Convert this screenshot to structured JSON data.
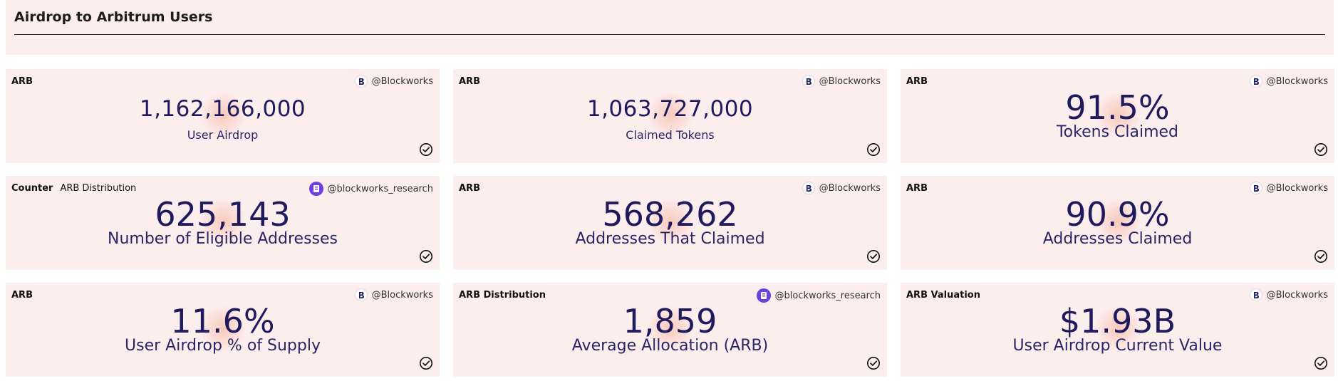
{
  "header": {
    "title": "Airdrop to Arbitrum Users"
  },
  "cards": [
    {
      "tag": "",
      "label": "ARB",
      "credit": "@Blockworks",
      "credit_icon": "blockworks-icon",
      "value": "1,162,166,000",
      "caption": "User Airdrop",
      "size": "sm"
    },
    {
      "tag": "",
      "label": "ARB",
      "credit": "@Blockworks",
      "credit_icon": "blockworks-icon",
      "value": "1,063,727,000",
      "caption": "Claimed Tokens",
      "size": "sm"
    },
    {
      "tag": "",
      "label": "ARB",
      "credit": "@Blockworks",
      "credit_icon": "blockworks-icon",
      "value": "91.5%",
      "caption": "Tokens Claimed",
      "size": "lg"
    },
    {
      "tag": "Counter",
      "label": "ARB Distribution",
      "credit": "@blockworks_research",
      "credit_icon": "blockworks-research-icon",
      "value": "625,143",
      "caption": "Number of Eligible Addresses",
      "size": "lg"
    },
    {
      "tag": "",
      "label": "ARB",
      "credit": "@Blockworks",
      "credit_icon": "blockworks-icon",
      "value": "568,262",
      "caption": "Addresses That Claimed",
      "size": "lg"
    },
    {
      "tag": "",
      "label": "ARB",
      "credit": "@Blockworks",
      "credit_icon": "blockworks-icon",
      "value": "90.9%",
      "caption": "Addresses Claimed",
      "size": "lg"
    },
    {
      "tag": "",
      "label": "ARB",
      "credit": "@Blockworks",
      "credit_icon": "blockworks-icon",
      "value": "11.6%",
      "caption": "User Airdrop % of Supply",
      "size": "lg"
    },
    {
      "tag": "",
      "label": "ARB Distribution",
      "credit": "@blockworks_research",
      "credit_icon": "blockworks-research-icon",
      "value": "1,859",
      "caption": "Average Allocation (ARB)",
      "size": "lg"
    },
    {
      "tag": "",
      "label": "ARB Valuation",
      "credit": "@Blockworks",
      "credit_icon": "blockworks-icon",
      "value": "$1.93B",
      "caption": "User Airdrop Current Value",
      "size": "lg"
    }
  ],
  "colors": {
    "panel_bg": "#fdeeee",
    "value_text": "#1f1a5e",
    "research_icon": "#6b3fe0"
  }
}
